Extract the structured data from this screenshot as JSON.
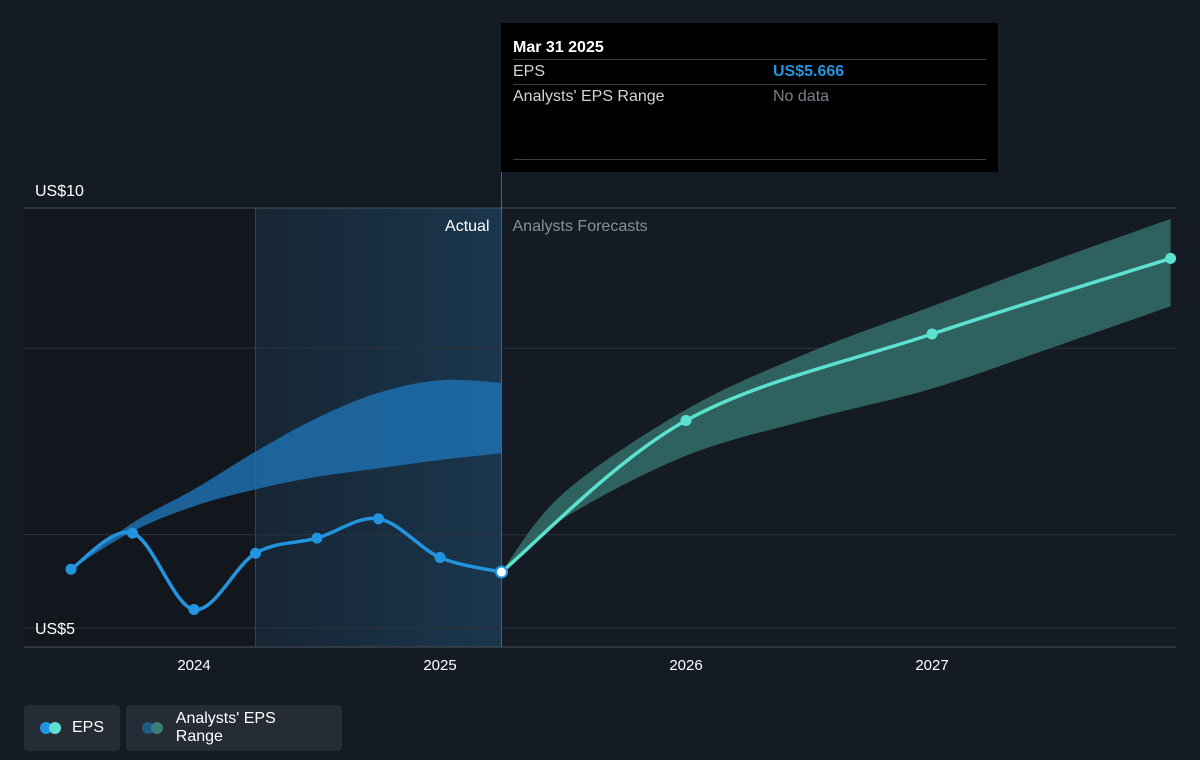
{
  "tooltip": {
    "date": "Mar 31 2025",
    "rows": [
      {
        "label": "EPS",
        "value": "US$5.666"
      },
      {
        "label": "Analysts' EPS Range",
        "value": "No data"
      }
    ]
  },
  "legend": {
    "eps_label": "EPS",
    "range_label": "Analysts' EPS Range"
  },
  "colors": {
    "background": "#151b24",
    "actual_eps": "#2394df",
    "forecast_eps": "#5ce1d0",
    "actual_range": "#1f6fae",
    "forecast_range": "#3a7f77",
    "past_shade": "#1a3850"
  },
  "chart_data": {
    "type": "line",
    "x_tick_labels": [
      "2024",
      "2025",
      "2026",
      "2027"
    ],
    "x_ticks": [
      2024.0,
      2025.0,
      2026.0,
      2027.0
    ],
    "xlim": [
      2023.35,
      2027.95
    ],
    "y_tick_labels": [
      "US$10",
      "US$5"
    ],
    "y_ticks": [
      10,
      5
    ],
    "ylim": [
      5,
      10
    ],
    "gridlines_y": [
      10,
      8.33,
      6.11,
      5
    ],
    "annotations": {
      "actual": "Actual",
      "forecast": "Analysts Forecasts"
    },
    "divider_x": 2025.25,
    "past_shade_range": [
      2024.25,
      2025.25
    ],
    "series": [
      {
        "name": "EPS",
        "role": "actual",
        "points": [
          [
            2023.5,
            5.7
          ],
          [
            2023.75,
            6.13
          ],
          [
            2024.0,
            5.22
          ],
          [
            2024.25,
            5.89
          ],
          [
            2024.5,
            6.07
          ],
          [
            2024.75,
            6.3
          ],
          [
            2025.0,
            5.84
          ],
          [
            2025.25,
            5.666
          ]
        ]
      },
      {
        "name": "EPS",
        "role": "forecast",
        "points": [
          [
            2025.25,
            5.666
          ],
          [
            2026.0,
            7.47
          ],
          [
            2027.0,
            8.5
          ],
          [
            2027.97,
            9.4
          ]
        ]
      }
    ],
    "range_bands": [
      {
        "name": "Analysts' EPS Range",
        "role": "actual",
        "upper": [
          [
            2023.5,
            5.7
          ],
          [
            2023.75,
            6.25
          ],
          [
            2024.0,
            6.65
          ],
          [
            2024.25,
            7.1
          ],
          [
            2024.5,
            7.5
          ],
          [
            2024.75,
            7.8
          ],
          [
            2025.0,
            7.95
          ],
          [
            2025.25,
            7.92
          ]
        ],
        "lower": [
          [
            2023.5,
            5.7
          ],
          [
            2023.75,
            6.15
          ],
          [
            2024.0,
            6.45
          ],
          [
            2024.25,
            6.65
          ],
          [
            2024.5,
            6.8
          ],
          [
            2024.75,
            6.9
          ],
          [
            2025.0,
            7.0
          ],
          [
            2025.25,
            7.08
          ]
        ]
      },
      {
        "name": "Analysts' EPS Range",
        "role": "forecast",
        "upper": [
          [
            2025.25,
            5.666
          ],
          [
            2025.5,
            6.6
          ],
          [
            2026.0,
            7.6
          ],
          [
            2026.5,
            8.28
          ],
          [
            2027.0,
            8.83
          ],
          [
            2027.5,
            9.38
          ],
          [
            2027.97,
            9.87
          ]
        ],
        "lower": [
          [
            2025.25,
            5.666
          ],
          [
            2025.5,
            6.3
          ],
          [
            2026.0,
            7.05
          ],
          [
            2026.5,
            7.48
          ],
          [
            2027.0,
            7.85
          ],
          [
            2027.5,
            8.35
          ],
          [
            2027.97,
            8.83
          ]
        ]
      }
    ],
    "highlight_point": [
      2025.25,
      5.666
    ]
  }
}
